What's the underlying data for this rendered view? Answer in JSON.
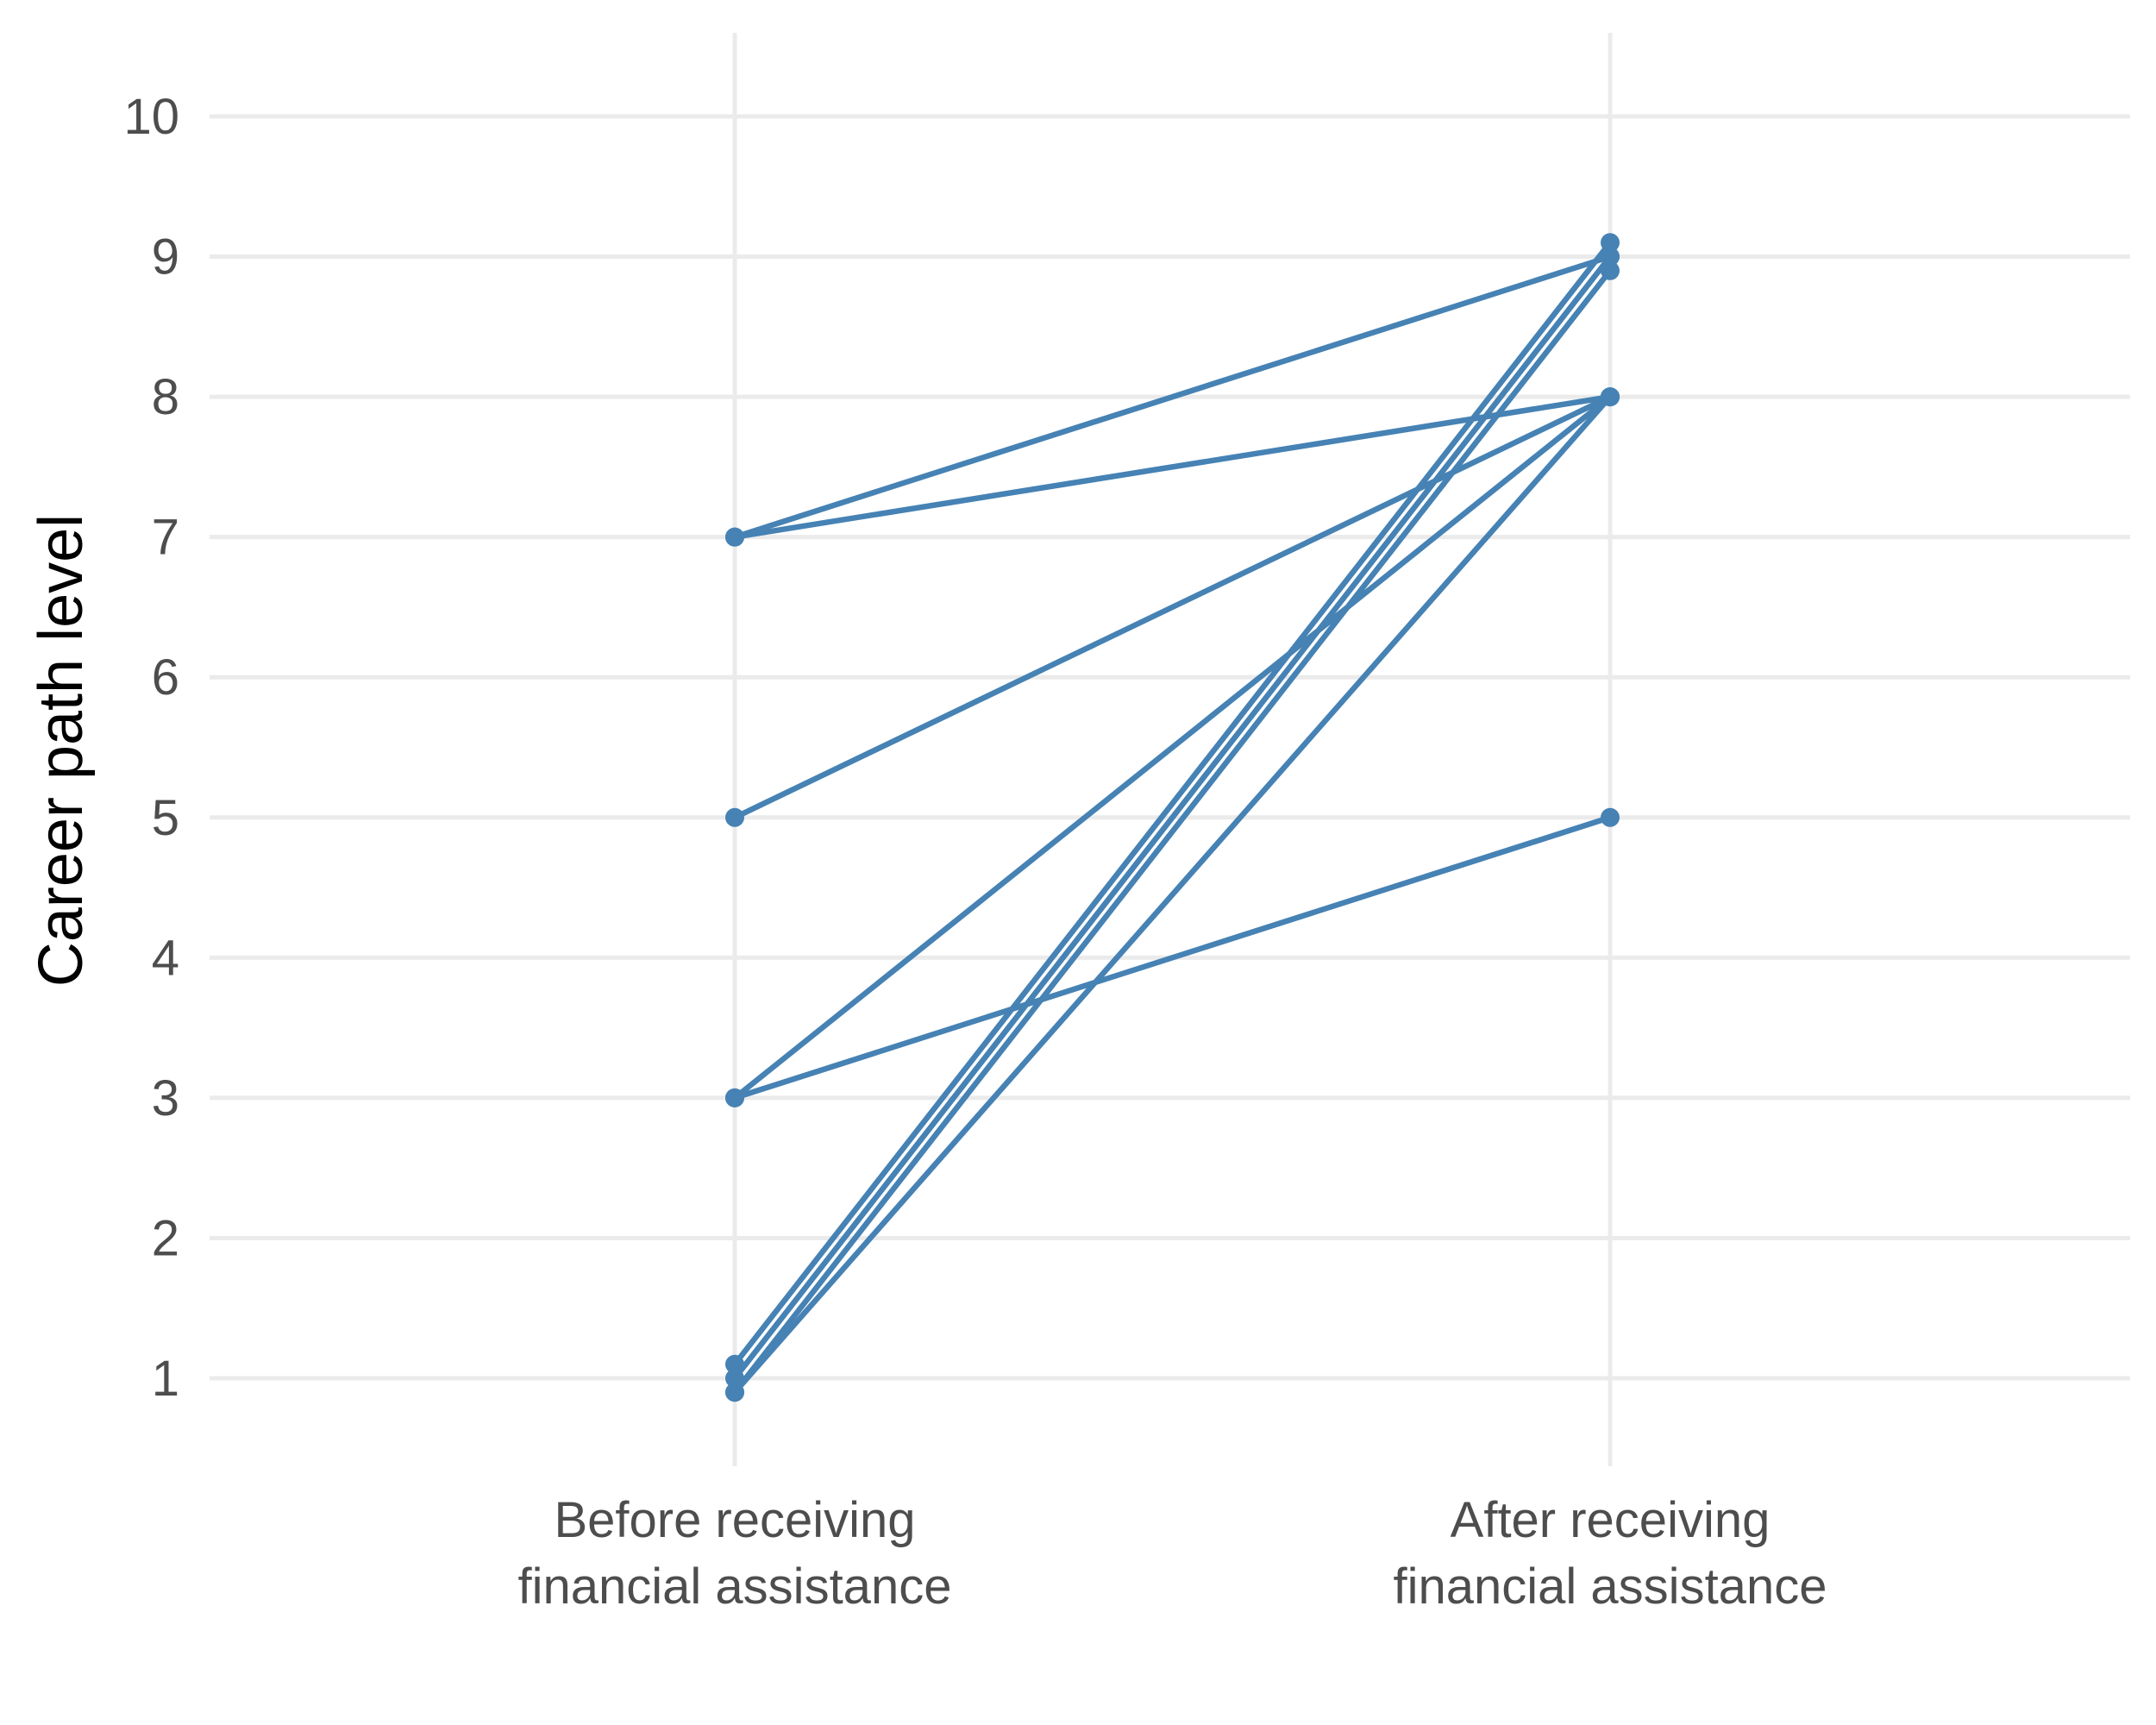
{
  "chart_data": {
    "type": "line",
    "title": "",
    "xlabel": "",
    "ylabel": "Career path level",
    "categories": [
      [
        "Before receiving",
        "financial assistance"
      ],
      [
        "After receiving",
        "financial assistance"
      ]
    ],
    "ylim": [
      0.4,
      10.6
    ],
    "yticks": [
      1,
      2,
      3,
      4,
      5,
      6,
      7,
      8,
      9,
      10
    ],
    "grid": true,
    "legend": "none",
    "color": "#4682b4",
    "series": [
      {
        "values": [
          7,
          9
        ]
      },
      {
        "values": [
          7,
          8
        ]
      },
      {
        "values": [
          5,
          8
        ]
      },
      {
        "values": [
          3,
          8
        ]
      },
      {
        "values": [
          3,
          5
        ]
      },
      {
        "values": [
          1.1,
          9.1
        ]
      },
      {
        "values": [
          1.0,
          9.0
        ]
      },
      {
        "values": [
          0.9,
          8.9
        ]
      },
      {
        "values": [
          0.9,
          8.0
        ]
      }
    ]
  }
}
